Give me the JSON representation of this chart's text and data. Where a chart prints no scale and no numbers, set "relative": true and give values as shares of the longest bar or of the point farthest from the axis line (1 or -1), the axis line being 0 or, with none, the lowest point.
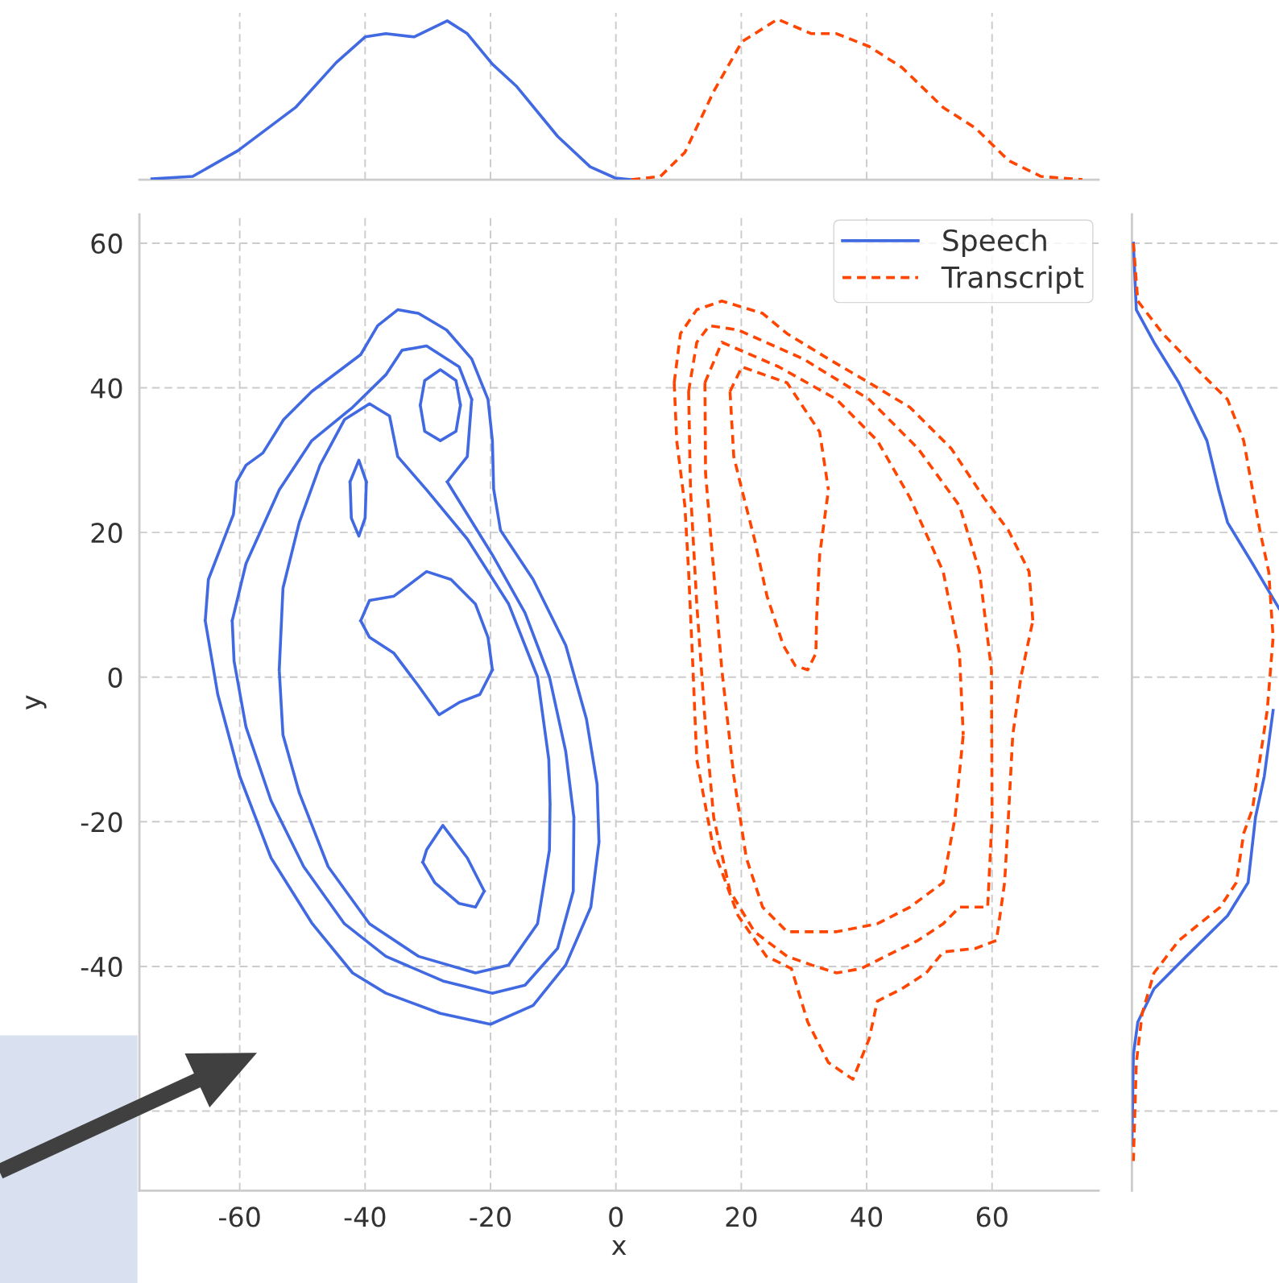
{
  "chart_data": [
    {
      "type": "line",
      "relative": true,
      "xlim": [
        -76,
        77
      ],
      "xticks": [
        -60,
        -40,
        -20,
        0,
        20,
        40,
        60
      ],
      "tick_labels": false,
      "grid": "x",
      "marker": "none",
      "series": [
        {
          "color": "#4169e1",
          "line_style": "solid",
          "x": [
            -74,
            -67.5,
            -60.3,
            -51.1,
            -44.6,
            -40,
            -36.7,
            -32.2,
            -26.9,
            -23.7,
            -19.7,
            -15.8,
            -9.3,
            -4.1,
            -0.1,
            2.5
          ],
          "values": [
            0.005,
            0.02,
            0.18,
            0.45,
            0.73,
            0.89,
            0.91,
            0.89,
            0.99,
            0.91,
            0.72,
            0.58,
            0.27,
            0.08,
            0.01,
            0
          ]
        },
        {
          "color": "#ff4500",
          "line_style": "dashed",
          "x": [
            2.5,
            7.1,
            11,
            15.6,
            20.1,
            25.8,
            31.2,
            35.2,
            40.4,
            45.6,
            52.2,
            57.4,
            62.6,
            67.8,
            74.4
          ],
          "values": [
            0,
            0.02,
            0.17,
            0.55,
            0.86,
            1,
            0.91,
            0.91,
            0.83,
            0.7,
            0.45,
            0.32,
            0.12,
            0.02,
            0
          ]
        }
      ]
    },
    {
      "type": "line",
      "xlabel": "x",
      "ylabel": "y",
      "xlim": [
        -76,
        77
      ],
      "ylim": [
        -71,
        64
      ],
      "xticks": [
        -60,
        -40,
        -20,
        0,
        20,
        40,
        60
      ],
      "yticks": [
        {
          "value": -60,
          "label": null
        },
        -40,
        -20,
        0,
        20,
        40,
        60
      ],
      "grid": true,
      "legend": "top right",
      "marker": "none",
      "series": [
        {
          "name": "Speech",
          "color": "#4169e1",
          "line_style": "solid",
          "x": [
            -65.5,
            -65,
            -63,
            -61,
            -60.5,
            -59,
            -56.3,
            -53,
            -48.5,
            -40.7,
            -38,
            -34.8,
            -31.5,
            -27,
            -23,
            -20.4,
            -19.7,
            -19.5,
            -18.4,
            -13.2,
            -8,
            -4.7,
            -3,
            -2.7,
            null,
            -65.5,
            -63.5,
            -60,
            -55,
            -48.5,
            -42,
            -36.7,
            -28,
            -20,
            -13.2,
            -8,
            -4,
            -2.7
          ],
          "values": [
            7.8,
            13.5,
            18,
            22.5,
            27,
            29.3,
            31,
            35.6,
            39.5,
            44.6,
            48.6,
            50.8,
            50.3,
            48,
            44,
            38.4,
            32.7,
            26,
            20.3,
            13.5,
            4.4,
            -5.8,
            -14.8,
            -22.8,
            null,
            7.8,
            -2.4,
            -13.7,
            -25,
            -34,
            -40.9,
            -43.7,
            -46.5,
            -48,
            -45.4,
            -39.8,
            -31.8,
            -22.8
          ]
        },
        {
          "color": "#4169e1",
          "line_style": "solid",
          "x": [
            -61.2,
            -59,
            -53.7,
            -48.5,
            -42,
            -36.7,
            -34.1,
            -30.2,
            -25,
            -23,
            null,
            -26.9,
            -23.7,
            -23,
            null,
            -26.9,
            -19.7,
            -14.5,
            -10.6,
            -8,
            -6.7,
            null,
            -61.2,
            -60.9,
            -59,
            -55,
            -49.8,
            -43.3,
            -36.7,
            -27.6,
            -19.7,
            -14.5,
            -9.3,
            -6.8,
            -6.7
          ],
          "values": [
            7.8,
            15.7,
            25.9,
            32.7,
            37.3,
            41.8,
            45.2,
            45.8,
            42.9,
            38.4,
            null,
            27,
            30.5,
            38.4,
            null,
            27,
            16.9,
            8.9,
            0,
            -10.3,
            -19.4,
            null,
            7.8,
            2.2,
            -6.9,
            -17.1,
            -26.2,
            -34.1,
            -38.6,
            -42,
            -43.7,
            -42.6,
            -37.5,
            -29.6,
            -19.4
          ]
        },
        {
          "color": "#4169e1",
          "line_style": "solid",
          "x": [
            -31.2,
            -30.5,
            -28,
            -25.5,
            -24.8,
            null,
            -31.2,
            -30.5,
            -28,
            -25.5,
            -24.8
          ],
          "values": [
            37.6,
            41,
            42.5,
            41,
            37.6,
            null,
            37.6,
            34,
            32.7,
            34,
            37.6
          ]
        },
        {
          "color": "#4169e1",
          "line_style": "solid",
          "x": [
            -53.7,
            -53.1,
            -50.5,
            -47.2,
            -43.3,
            -39.3,
            -36.1,
            -34.8,
            -30.2,
            -23.7,
            -17.1,
            -12.5,
            -10.7,
            -10.5,
            null,
            -53.7,
            -53.1,
            -50.5,
            -45.9,
            -39.3,
            -31.5,
            -22.4,
            -17.1,
            -12.5,
            -10.6,
            -10.5
          ],
          "values": [
            1,
            12.3,
            21.4,
            29.3,
            35.6,
            37.8,
            36.1,
            30.5,
            25.9,
            19.1,
            10.1,
            0,
            -11.4,
            -17.5,
            null,
            1,
            -8,
            -16,
            -26.2,
            -34.1,
            -38.6,
            -40.9,
            -39.8,
            -34.1,
            -23.9,
            -17.5
          ]
        },
        {
          "color": "#4169e1",
          "line_style": "solid",
          "x": [
            -42.4,
            -41,
            -39.8,
            null,
            -42.4,
            -42.2,
            -41,
            -40,
            -39.8
          ],
          "values": [
            27,
            30,
            27,
            null,
            27,
            22,
            19.5,
            22,
            27
          ]
        },
        {
          "color": "#4169e1",
          "line_style": "solid",
          "x": [
            -40.7,
            -39.3,
            -35.4,
            -30.2,
            -26.3,
            -22.4,
            -20.4,
            -19.7,
            null,
            -40.7,
            -39.3,
            -35.4,
            -31.5,
            -28.2,
            -25,
            -21.7,
            -19.7
          ],
          "values": [
            7.8,
            10.6,
            11.2,
            14.6,
            13.5,
            10.1,
            5.5,
            1,
            null,
            7.8,
            5.5,
            3.3,
            -1.2,
            -5.2,
            -3.5,
            -2.4,
            1
          ]
        },
        {
          "color": "#4169e1",
          "line_style": "solid",
          "x": [
            -30.8,
            -30.2,
            -27.6,
            -23.7,
            -21,
            null,
            -30.8,
            -28.9,
            -25,
            -22.4,
            -21
          ],
          "values": [
            -25.6,
            -23.9,
            -20.5,
            -25,
            -29.6,
            null,
            -25.6,
            -28.4,
            -31.3,
            -31.8,
            -29.6
          ]
        },
        {
          "name": "Transcript",
          "color": "#ff4500",
          "line_style": "dashed",
          "x": [
            9.3,
            10.3,
            12.9,
            16.9,
            23.4,
            27.3,
            33.9,
            40.4,
            46.9,
            53.5,
            58.7,
            62.6,
            65.9,
            66.5,
            null,
            9.3,
            9.7,
            11,
            11.6,
            12.3,
            12.9,
            15.6,
            19.5,
            24,
            28,
            30.6,
            33.9,
            37.8,
            40.4,
            41.7,
            45.6,
            49.5,
            52.2,
            57.4,
            60.7,
            62,
            62.6,
            63.3,
            64.6,
            66.5
          ],
          "values": [
            40.7,
            47.5,
            50.8,
            52,
            50.3,
            47.5,
            44,
            40.7,
            37.3,
            31.6,
            24.8,
            20.3,
            14.6,
            7.8,
            null,
            40.7,
            32.7,
            23.7,
            14.6,
            1,
            -11.4,
            -23.9,
            -33,
            -38.6,
            -40.3,
            -47.7,
            -53.3,
            -55.6,
            -50,
            -44.8,
            -43.1,
            -40.9,
            -38,
            -37.5,
            -36.4,
            -28.4,
            -19.4,
            -8,
            0,
            7.8
          ]
        },
        {
          "color": "#ff4500",
          "line_style": "dashed",
          "x": [
            11.6,
            12.9,
            14.9,
            19.5,
            29.9,
            40.4,
            48.2,
            54.8,
            58,
            59.9,
            60,
            null,
            11.6,
            11.9,
            12.9,
            14.2,
            15.6,
            18.2,
            22.1,
            27.3,
            31.2,
            35.2,
            39.1,
            43,
            48.2,
            52.2,
            54.8,
            59.3,
            60
          ],
          "values": [
            39.5,
            46.3,
            48.6,
            48,
            44,
            38.4,
            31.6,
            23.7,
            14.6,
            1,
            -19.4,
            null,
            39.5,
            25.9,
            10.1,
            -5.8,
            -19.4,
            -29.6,
            -35.2,
            -38.6,
            -39.8,
            -40.9,
            -40.3,
            -38.6,
            -36.4,
            -34.1,
            -31.8,
            -31.8,
            -19.4
          ]
        },
        {
          "color": "#ff4500",
          "line_style": "dashed",
          "x": [
            14.2,
            16.9,
            26,
            35.2,
            41.7,
            46.9,
            52.2,
            54.8,
            55.4,
            null,
            14.2,
            14.3,
            15.6,
            16.9,
            18.8,
            20.8,
            23.4,
            27.3,
            35.2,
            41.7,
            46.9,
            52.2,
            54.1,
            55.4
          ],
          "values": [
            40.7,
            46.3,
            42.9,
            38.4,
            32.7,
            24.8,
            14.6,
            3.3,
            -8,
            null,
            40.7,
            28.2,
            14.6,
            1,
            -13.7,
            -25,
            -31.8,
            -35.2,
            -35.2,
            -34.1,
            -31.8,
            -28.4,
            -19.4,
            -8
          ]
        },
        {
          "color": "#ff4500",
          "line_style": "dashed",
          "x": [
            18.2,
            20.1,
            27.3,
            32.5,
            33.9,
            null,
            18.2,
            18.8,
            20.1,
            22.1,
            24.1,
            26.7,
            28.6,
            30.6,
            31.9,
            32,
            32.5,
            33.9
          ],
          "values": [
            39.5,
            42.9,
            40.7,
            33.9,
            25.9,
            null,
            39.5,
            30.5,
            25.9,
            19.1,
            11.2,
            4.4,
            1.6,
            1,
            3.3,
            7.8,
            16.9,
            25.9
          ]
        }
      ]
    },
    {
      "type": "line",
      "relative": true,
      "orientation": "horizontal",
      "ylim": [
        -71,
        64
      ],
      "yticks": [
        -60,
        -40,
        -20,
        0,
        20,
        40,
        60
      ],
      "tick_labels": false,
      "grid": "y",
      "marker": "none",
      "series": [
        {
          "color": "#4169e1",
          "line_style": "solid",
          "x": [
            60,
            50.8,
            46.3,
            40.7,
            32.7,
            25.9,
            21.4,
            15.7,
            9.5,
            null,
            -4.6,
            -13.7,
            -19.4,
            -28.4,
            -33,
            -38.6,
            -43.1,
            -47.7,
            -52.2,
            -64.7
          ],
          "values": [
            0.01,
            0.03,
            0.15,
            0.32,
            0.51,
            0.59,
            0.65,
            0.82,
            1.0,
            null,
            0.96,
            0.9,
            0.84,
            0.79,
            0.65,
            0.37,
            0.15,
            0.04,
            0.01,
            0
          ]
        },
        {
          "color": "#ff4500",
          "line_style": "dashed",
          "x": [
            60,
            52,
            47.5,
            41.8,
            38.4,
            32.7,
            25.9,
            20.3,
            14.6,
            5.5,
            -4.6,
            -11.4,
            -18.2,
            -21.6,
            -28.4,
            -31.8,
            -36.4,
            -40.9,
            -46.5,
            -53.3,
            -66.9
          ],
          "values": [
            0.01,
            0.04,
            0.21,
            0.48,
            0.65,
            0.76,
            0.82,
            0.87,
            0.93,
            0.96,
            0.92,
            0.87,
            0.82,
            0.76,
            0.71,
            0.6,
            0.32,
            0.15,
            0.07,
            0.03,
            0.01
          ]
        }
      ]
    }
  ]
}
